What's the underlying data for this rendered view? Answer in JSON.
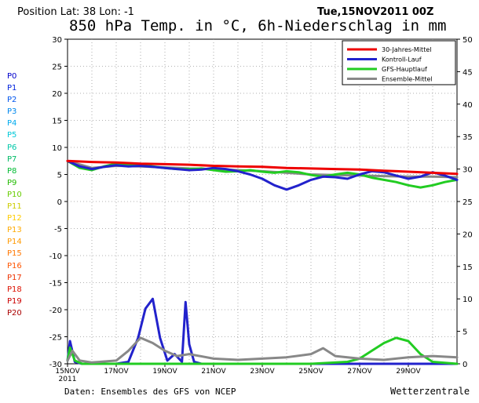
{
  "header": {
    "position_text": "Position   Lat: 38  Lon: -1",
    "date": "Tue,15NOV2011 00Z",
    "title": "850 hPa Temp. in °C, 6h-Niederschlag in mm"
  },
  "footer": {
    "source": "Daten: Ensembles des GFS von NCEP",
    "brand": "Wetterzentrale"
  },
  "member_legend": [
    {
      "label": "P0",
      "color": "#0000cc"
    },
    {
      "label": "P1",
      "color": "#0022dd"
    },
    {
      "label": "P2",
      "color": "#0055ee"
    },
    {
      "label": "P3",
      "color": "#0088ee"
    },
    {
      "label": "P4",
      "color": "#00aaee"
    },
    {
      "label": "P5",
      "color": "#00c8d8"
    },
    {
      "label": "P6",
      "color": "#00c8a8"
    },
    {
      "label": "P7",
      "color": "#00bb66"
    },
    {
      "label": "P8",
      "color": "#00bb33"
    },
    {
      "label": "P9",
      "color": "#22bb00"
    },
    {
      "label": "P10",
      "color": "#66cc00"
    },
    {
      "label": "P11",
      "color": "#cccc00"
    },
    {
      "label": "P12",
      "color": "#ffcc00"
    },
    {
      "label": "P13",
      "color": "#ffaa00"
    },
    {
      "label": "P14",
      "color": "#ff9900"
    },
    {
      "label": "P15",
      "color": "#ff7700"
    },
    {
      "label": "P16",
      "color": "#ff5500"
    },
    {
      "label": "P17",
      "color": "#ee3300"
    },
    {
      "label": "P18",
      "color": "#dd1100"
    },
    {
      "label": "P19",
      "color": "#cc0000"
    },
    {
      "label": "P20",
      "color": "#aa0000"
    }
  ],
  "chart_data": {
    "type": "line",
    "x_tick_labels": [
      "15NOV\n2011",
      "17NOV",
      "19NOV",
      "21NOV",
      "23NOV",
      "25NOV",
      "27NOV",
      "29NOV"
    ],
    "x_tick_days": [
      0,
      2,
      4,
      6,
      8,
      10,
      12,
      14
    ],
    "xlim_days": [
      0,
      16
    ],
    "y_left": {
      "ticks": [
        30,
        25,
        20,
        15,
        10,
        5,
        0,
        -5,
        -10,
        -15,
        -20,
        -25,
        -30
      ],
      "lim": [
        -30,
        30
      ]
    },
    "y_right": {
      "ticks": [
        50,
        45,
        40,
        35,
        30,
        25,
        20,
        15,
        10,
        5,
        0
      ],
      "lim": [
        0,
        50
      ]
    },
    "grid": true,
    "legend_position": "top-right",
    "legend": [
      {
        "name": "30-Jahres-Mittel",
        "color": "#ee0000",
        "width": 3
      },
      {
        "name": "Kontroll-Lauf",
        "color": "#2222cc",
        "width": 3
      },
      {
        "name": "GFS-Hauptlauf",
        "color": "#22cc22",
        "width": 3
      },
      {
        "name": "Ensemble-Mittel",
        "color": "#888888",
        "width": 3
      }
    ],
    "temperature_series": [
      {
        "name": "30-Jahres-Mittel",
        "color": "#ee0000",
        "width": 3,
        "x": [
          0,
          1,
          2,
          3,
          4,
          5,
          6,
          7,
          8,
          9,
          10,
          11,
          12,
          13,
          14,
          15,
          16
        ],
        "y": [
          7.5,
          7.3,
          7.2,
          7.0,
          6.9,
          6.8,
          6.6,
          6.5,
          6.4,
          6.2,
          6.1,
          6.0,
          5.9,
          5.7,
          5.5,
          5.3,
          5.1
        ]
      },
      {
        "name": "Kontroll-Lauf",
        "color": "#2222cc",
        "width": 3,
        "x": [
          0,
          0.5,
          1,
          1.5,
          2,
          2.5,
          3,
          3.5,
          4,
          4.5,
          5,
          5.5,
          6,
          6.5,
          7,
          7.5,
          8,
          8.5,
          9,
          9.5,
          10,
          10.5,
          11,
          11.5,
          12,
          12.5,
          13,
          13.5,
          14,
          14.5,
          15,
          15.5,
          16
        ],
        "y": [
          7.5,
          6.5,
          6.0,
          6.4,
          6.7,
          6.5,
          6.6,
          6.4,
          6.2,
          6.0,
          5.8,
          5.9,
          6.2,
          6.0,
          5.6,
          5.0,
          4.2,
          3.0,
          2.2,
          3.0,
          4.0,
          4.6,
          4.5,
          4.2,
          5.0,
          5.6,
          5.4,
          4.8,
          4.2,
          4.6,
          5.4,
          4.8,
          4.0
        ]
      },
      {
        "name": "GFS-Hauptlauf",
        "color": "#22cc22",
        "width": 3,
        "x": [
          0,
          0.5,
          1,
          1.5,
          2,
          2.5,
          3,
          3.5,
          4,
          4.5,
          5,
          5.5,
          6,
          6.5,
          7,
          7.5,
          8,
          8.5,
          9,
          9.5,
          10,
          10.5,
          11,
          11.5,
          12,
          12.5,
          13,
          13.5,
          14,
          14.5,
          15,
          15.5,
          16
        ],
        "y": [
          7.5,
          6.2,
          5.8,
          6.5,
          7.0,
          6.8,
          6.7,
          6.5,
          6.2,
          6.0,
          6.0,
          6.1,
          5.8,
          5.5,
          5.6,
          5.8,
          5.5,
          5.3,
          5.6,
          5.4,
          4.9,
          4.6,
          5.0,
          5.3,
          5.0,
          4.4,
          4.0,
          3.6,
          3.0,
          2.6,
          3.0,
          3.6,
          4.0
        ]
      },
      {
        "name": "Ensemble-Mittel",
        "color": "#888888",
        "width": 3,
        "x": [
          0,
          1,
          2,
          3,
          4,
          5,
          6,
          7,
          8,
          9,
          10,
          11,
          12,
          13,
          14,
          15,
          16
        ],
        "y": [
          7.5,
          6.2,
          6.6,
          6.5,
          6.3,
          6.1,
          6.0,
          5.8,
          5.6,
          5.3,
          5.0,
          4.9,
          4.8,
          4.7,
          4.6,
          4.6,
          4.5
        ]
      }
    ],
    "precip_series": [
      {
        "name": "Kontroll-Lauf",
        "color": "#2222cc",
        "width": 3,
        "x": [
          0,
          0.1,
          0.3,
          0.6,
          1.0,
          1.5,
          2.0,
          2.5,
          2.9,
          3.2,
          3.5,
          3.8,
          4.1,
          4.4,
          4.7,
          4.85,
          5.0,
          5.2,
          5.5,
          6.0,
          7.0,
          8.0,
          16
        ],
        "y": [
          0.5,
          3.5,
          0.3,
          0,
          0,
          0,
          0,
          0.3,
          4.0,
          8.5,
          10.0,
          4.0,
          0.5,
          1.5,
          0.3,
          9.5,
          3.0,
          0.3,
          0,
          0,
          0,
          0,
          0
        ]
      },
      {
        "name": "GFS-Hauptlauf",
        "color": "#22cc22",
        "width": 3,
        "x": [
          0,
          0.1,
          0.3,
          0.6,
          1.0,
          4.0,
          8.0,
          10.0,
          11.5,
          12.0,
          12.5,
          13.0,
          13.5,
          14.0,
          14.5,
          15.0,
          16
        ],
        "y": [
          0.5,
          2.5,
          0.5,
          0,
          0,
          0,
          0,
          0,
          0.3,
          0.8,
          2.0,
          3.2,
          4.0,
          3.5,
          1.5,
          0.3,
          0
        ]
      },
      {
        "name": "Ensemble-Mittel",
        "color": "#888888",
        "width": 3,
        "x": [
          0,
          0.2,
          0.5,
          1.0,
          2.0,
          2.5,
          3.0,
          3.5,
          4.0,
          4.5,
          5.0,
          6.0,
          7.0,
          8.0,
          9.0,
          10.0,
          10.5,
          11.0,
          12.0,
          13.0,
          14.0,
          15.0,
          16
        ],
        "y": [
          0.5,
          2.0,
          0.5,
          0.2,
          0.5,
          2.0,
          4.0,
          3.2,
          2.0,
          1.2,
          1.5,
          0.8,
          0.6,
          0.8,
          1.0,
          1.5,
          2.4,
          1.2,
          0.8,
          0.6,
          1.0,
          1.2,
          1.0
        ]
      }
    ]
  }
}
